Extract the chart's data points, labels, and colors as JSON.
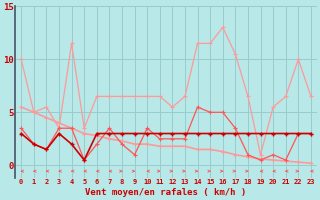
{
  "x": [
    0,
    1,
    2,
    3,
    4,
    5,
    6,
    7,
    8,
    9,
    10,
    11,
    12,
    13,
    14,
    15,
    16,
    17,
    18,
    19,
    20,
    21,
    22,
    23
  ],
  "line_gusts": [
    10.0,
    5.0,
    5.5,
    3.5,
    11.5,
    3.5,
    6.5,
    6.5,
    6.5,
    6.5,
    6.5,
    6.5,
    5.5,
    6.5,
    11.5,
    11.5,
    13.0,
    10.5,
    6.5,
    1.0,
    5.5,
    6.5,
    10.0,
    6.5
  ],
  "line_avg": [
    3.5,
    2.0,
    1.5,
    3.5,
    3.5,
    0.5,
    2.0,
    3.5,
    2.0,
    1.0,
    3.5,
    2.5,
    2.5,
    2.5,
    5.5,
    5.0,
    5.0,
    3.5,
    1.0,
    0.5,
    1.0,
    0.5,
    3.0,
    3.0
  ],
  "line_trend": [
    5.5,
    5.0,
    4.5,
    4.0,
    3.5,
    3.0,
    2.8,
    2.5,
    2.3,
    2.0,
    2.0,
    1.8,
    1.8,
    1.8,
    1.5,
    1.5,
    1.3,
    1.0,
    0.8,
    0.6,
    0.5,
    0.4,
    0.3,
    0.2
  ],
  "line_flat": [
    3.0,
    2.0,
    1.5,
    3.0,
    2.0,
    0.5,
    3.0,
    3.0,
    3.0,
    3.0,
    3.0,
    3.0,
    3.0,
    3.0,
    3.0,
    3.0,
    3.0,
    3.0,
    3.0,
    3.0,
    3.0,
    3.0,
    3.0,
    3.0
  ],
  "arrows": [
    -1,
    -1,
    -1,
    -1,
    -1,
    -1,
    -1,
    -1,
    1,
    1,
    -1,
    1,
    1,
    1,
    1,
    1,
    1,
    1,
    1,
    -1,
    -1,
    -1,
    1,
    -1
  ],
  "color_light": "#ff9999",
  "color_medium": "#ff5555",
  "color_dark": "#cc0000",
  "bg_color": "#b8e8e8",
  "grid_color": "#99cccc",
  "xlabel": "Vent moyen/en rafales ( km/h )",
  "ylim_top": 15,
  "yticks": [
    0,
    5,
    10,
    15
  ],
  "xticks": [
    0,
    1,
    2,
    3,
    4,
    5,
    6,
    7,
    8,
    9,
    10,
    11,
    12,
    13,
    14,
    15,
    16,
    17,
    18,
    19,
    20,
    21,
    22,
    23
  ]
}
